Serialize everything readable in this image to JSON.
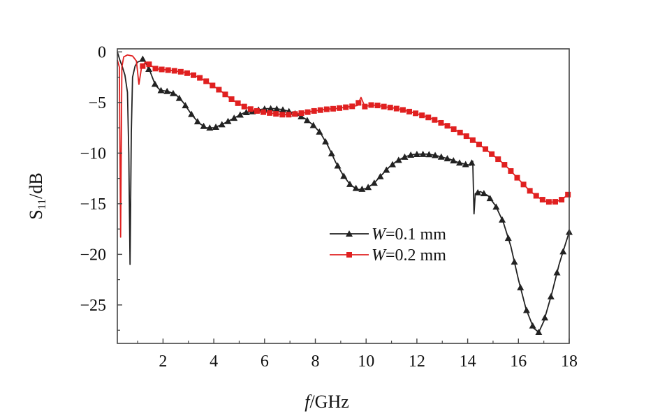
{
  "chart_data": {
    "type": "line",
    "xlabel": "f/GHz",
    "ylabel": "S11/dB",
    "xlim": [
      0.2,
      18
    ],
    "ylim": [
      -28.8,
      0.3
    ],
    "x_ticks": [
      2,
      4,
      6,
      8,
      10,
      12,
      14,
      16,
      18
    ],
    "y_ticks": [
      0,
      -5,
      -10,
      -15,
      -20,
      -25
    ],
    "x_tick_labels": [
      "2",
      "4",
      "6",
      "8",
      "10",
      "12",
      "14",
      "16",
      "18"
    ],
    "y_tick_labels": [
      "0",
      "−5",
      "−10",
      "−15",
      "−20",
      "−25"
    ],
    "grid": false,
    "legend_position": "lower-middle",
    "series": [
      {
        "name": "W=0.1 mm",
        "color": "#222222",
        "marker": "triangle",
        "points": [
          [
            0.2,
            0
          ],
          [
            0.3,
            -0.8
          ],
          [
            0.4,
            -1.5
          ],
          [
            0.5,
            -2.3
          ],
          [
            0.6,
            -4
          ],
          [
            0.65,
            -10
          ],
          [
            0.7,
            -21
          ],
          [
            0.75,
            -8
          ],
          [
            0.8,
            -2.5
          ],
          [
            0.9,
            -1.4
          ],
          [
            1.0,
            -1.0
          ],
          [
            1.1,
            -0.9
          ],
          [
            1.2,
            -0.7
          ],
          [
            1.3,
            -1.0
          ],
          [
            1.5,
            -2.0
          ],
          [
            1.7,
            -3.3
          ],
          [
            1.9,
            -3.8
          ],
          [
            2.2,
            -3.9
          ],
          [
            2.5,
            -4.2
          ],
          [
            2.8,
            -5.0
          ],
          [
            3.1,
            -6.1
          ],
          [
            3.4,
            -7.0
          ],
          [
            3.7,
            -7.5
          ],
          [
            4.0,
            -7.5
          ],
          [
            4.3,
            -7.2
          ],
          [
            4.6,
            -6.8
          ],
          [
            4.9,
            -6.4
          ],
          [
            5.2,
            -6.0
          ],
          [
            5.5,
            -5.9
          ],
          [
            5.8,
            -5.7
          ],
          [
            6.1,
            -5.6
          ],
          [
            6.4,
            -5.6
          ],
          [
            6.7,
            -5.7
          ],
          [
            7.0,
            -5.9
          ],
          [
            7.3,
            -6.2
          ],
          [
            7.6,
            -6.6
          ],
          [
            7.9,
            -7.2
          ],
          [
            8.2,
            -8.0
          ],
          [
            8.5,
            -9.3
          ],
          [
            8.8,
            -10.9
          ],
          [
            9.1,
            -12.2
          ],
          [
            9.4,
            -13.2
          ],
          [
            9.7,
            -13.6
          ],
          [
            10.0,
            -13.5
          ],
          [
            10.3,
            -13.0
          ],
          [
            10.6,
            -12.2
          ],
          [
            10.9,
            -11.4
          ],
          [
            11.2,
            -10.8
          ],
          [
            11.5,
            -10.4
          ],
          [
            11.8,
            -10.15
          ],
          [
            12.1,
            -10.1
          ],
          [
            12.4,
            -10.1
          ],
          [
            12.7,
            -10.2
          ],
          [
            13.0,
            -10.4
          ],
          [
            13.3,
            -10.6
          ],
          [
            13.6,
            -10.9
          ],
          [
            13.9,
            -11.1
          ],
          [
            14.1,
            -11.2
          ],
          [
            14.2,
            -10.8
          ],
          [
            14.25,
            -16.0
          ],
          [
            14.3,
            -14.0
          ],
          [
            14.5,
            -13.8
          ],
          [
            14.8,
            -14.2
          ],
          [
            15.1,
            -15.2
          ],
          [
            15.4,
            -16.8
          ],
          [
            15.7,
            -19.2
          ],
          [
            16.0,
            -22.5
          ],
          [
            16.3,
            -25.4
          ],
          [
            16.6,
            -27.3
          ],
          [
            16.8,
            -27.7
          ],
          [
            17.0,
            -26.6
          ],
          [
            17.3,
            -24.0
          ],
          [
            17.6,
            -21.0
          ],
          [
            17.85,
            -19.0
          ],
          [
            18.0,
            -17.8
          ]
        ]
      },
      {
        "name": "W=0.2 mm",
        "color": "#e02020",
        "marker": "square",
        "points": [
          [
            0.2,
            -0.8
          ],
          [
            0.28,
            -1.5
          ],
          [
            0.33,
            -18.3
          ],
          [
            0.38,
            -1.5
          ],
          [
            0.45,
            -0.5
          ],
          [
            0.6,
            -0.3
          ],
          [
            0.8,
            -0.4
          ],
          [
            0.95,
            -0.9
          ],
          [
            1.05,
            -3.2
          ],
          [
            1.15,
            -1.6
          ],
          [
            1.3,
            -1.0
          ],
          [
            1.5,
            -1.3
          ],
          [
            1.7,
            -1.65
          ],
          [
            2.0,
            -1.75
          ],
          [
            2.4,
            -1.85
          ],
          [
            2.8,
            -2.0
          ],
          [
            3.1,
            -2.2
          ],
          [
            3.4,
            -2.5
          ],
          [
            3.7,
            -2.9
          ],
          [
            4.0,
            -3.4
          ],
          [
            4.3,
            -3.9
          ],
          [
            4.6,
            -4.5
          ],
          [
            4.9,
            -5.0
          ],
          [
            5.2,
            -5.4
          ],
          [
            5.5,
            -5.7
          ],
          [
            5.8,
            -5.9
          ],
          [
            6.1,
            -6.0
          ],
          [
            6.4,
            -6.1
          ],
          [
            6.7,
            -6.2
          ],
          [
            7.0,
            -6.2
          ],
          [
            7.3,
            -6.1
          ],
          [
            7.6,
            -6.0
          ],
          [
            7.9,
            -5.85
          ],
          [
            8.2,
            -5.75
          ],
          [
            8.5,
            -5.65
          ],
          [
            8.8,
            -5.6
          ],
          [
            9.1,
            -5.5
          ],
          [
            9.4,
            -5.4
          ],
          [
            9.65,
            -5.3
          ],
          [
            9.8,
            -4.5
          ],
          [
            9.95,
            -5.4
          ],
          [
            10.2,
            -5.25
          ],
          [
            10.5,
            -5.3
          ],
          [
            10.8,
            -5.45
          ],
          [
            11.1,
            -5.55
          ],
          [
            11.4,
            -5.7
          ],
          [
            11.7,
            -5.9
          ],
          [
            12.0,
            -6.1
          ],
          [
            12.3,
            -6.35
          ],
          [
            12.6,
            -6.6
          ],
          [
            12.9,
            -6.95
          ],
          [
            13.2,
            -7.3
          ],
          [
            13.5,
            -7.7
          ],
          [
            13.8,
            -8.1
          ],
          [
            14.1,
            -8.55
          ],
          [
            14.4,
            -9.05
          ],
          [
            14.7,
            -9.6
          ],
          [
            15.0,
            -10.2
          ],
          [
            15.3,
            -10.8
          ],
          [
            15.6,
            -11.5
          ],
          [
            15.9,
            -12.3
          ],
          [
            16.2,
            -13.1
          ],
          [
            16.5,
            -13.85
          ],
          [
            16.8,
            -14.4
          ],
          [
            17.1,
            -14.8
          ],
          [
            17.4,
            -14.85
          ],
          [
            17.7,
            -14.6
          ],
          [
            18.0,
            -14.0
          ]
        ]
      }
    ]
  }
}
